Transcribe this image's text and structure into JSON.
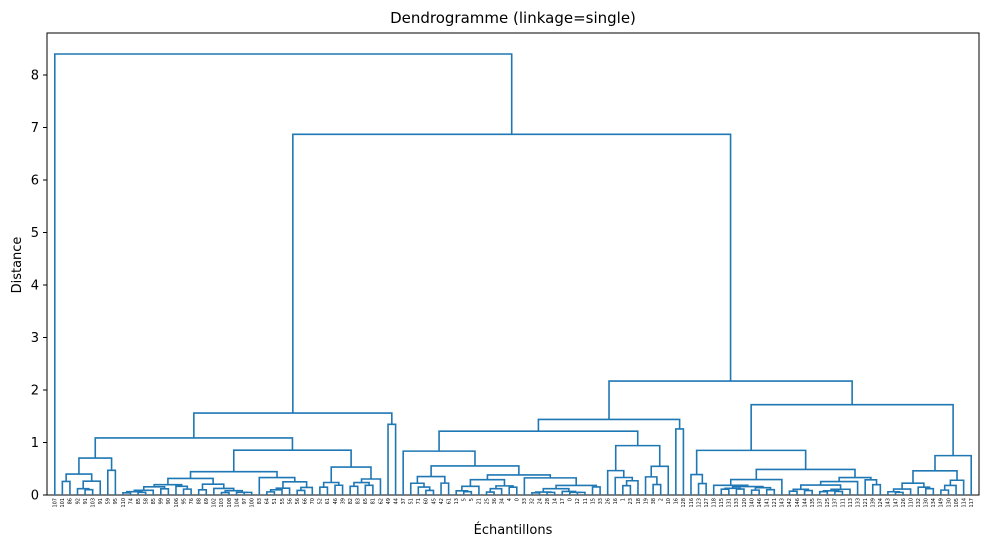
{
  "chart_data": {
    "type": "dendrogram",
    "title": "Dendrogramme (linkage=single)",
    "xlabel": "Échantillons",
    "ylabel": "Distance",
    "ylim": [
      0,
      8.8
    ],
    "yticks": [
      0,
      1,
      2,
      3,
      4,
      5,
      6,
      7,
      8
    ],
    "grid": false,
    "color": "#1f77b4",
    "leaves": [
      "107",
      "101",
      "86",
      "92",
      "91",
      "103",
      "91",
      "59",
      "95",
      "110",
      "74",
      "85",
      "58",
      "85",
      "99",
      "90",
      "106",
      "95",
      "76",
      "88",
      "69",
      "102",
      "103",
      "108",
      "104",
      "97",
      "100",
      "83",
      "64",
      "51",
      "55",
      "56",
      "56",
      "66",
      "70",
      "52",
      "61",
      "46",
      "39",
      "82",
      "83",
      "65",
      "81",
      "62",
      "49",
      "44",
      "37",
      "51",
      "71",
      "60",
      "45",
      "42",
      "61",
      "13",
      "5",
      "5",
      "21",
      "25",
      "36",
      "34",
      "4",
      "0",
      "33",
      "32",
      "24",
      "28",
      "14",
      "17",
      "0",
      "12",
      "11",
      "15",
      "33",
      "26",
      "16",
      "1",
      "23",
      "18",
      "19",
      "38",
      "2",
      "10",
      "16",
      "128",
      "116",
      "123",
      "127",
      "118",
      "115",
      "131",
      "133",
      "120",
      "140",
      "146",
      "141",
      "121",
      "143",
      "142",
      "146",
      "144",
      "135",
      "137",
      "125",
      "137",
      "111",
      "113",
      "133",
      "121",
      "139",
      "124",
      "143",
      "147",
      "126",
      "110",
      "132",
      "130",
      "134",
      "149",
      "130",
      "105",
      "114",
      "117"
    ],
    "top_merges": [
      {
        "height": 8.4,
        "joins": "outlier branch (107) with rest"
      },
      {
        "height": 6.87,
        "joins": "left cluster with right cluster"
      },
      {
        "height": 2.17,
        "joins": "middle cluster with far-right cluster"
      },
      {
        "height": 1.72,
        "joins": "far-right cluster subgroups"
      },
      {
        "height": 1.56,
        "joins": "leftmost group"
      },
      {
        "height": 1.44,
        "joins": "middle cluster subgroup"
      },
      {
        "height": 1.1,
        "joins": "second group"
      }
    ]
  }
}
